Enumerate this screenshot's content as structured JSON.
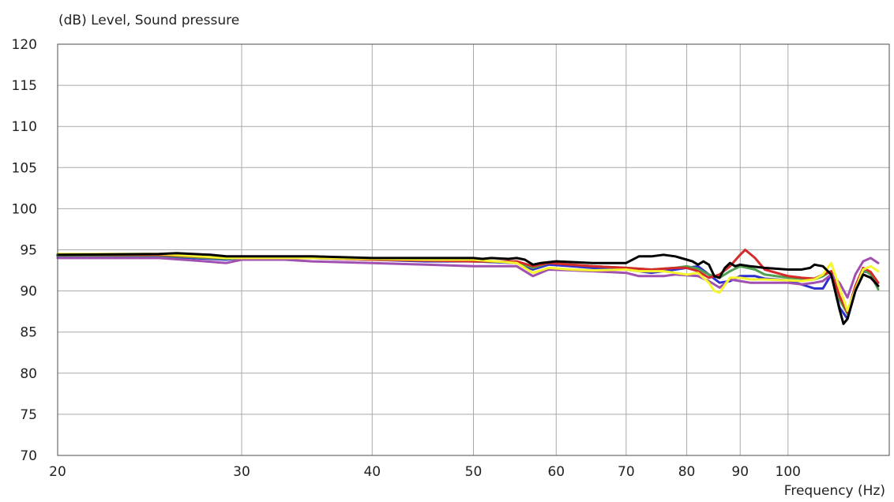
{
  "chart_data": {
    "type": "line",
    "title": "",
    "ylabel": "(dB)  Level, Sound pressure",
    "xlabel": "Frequency  (Hz)",
    "x_scale": "log",
    "xlim": [
      20,
      125
    ],
    "ylim": [
      70,
      120
    ],
    "grid": true,
    "legend": "none",
    "x_ticks": [
      20,
      30,
      40,
      50,
      60,
      70,
      80,
      90,
      100
    ],
    "y_ticks": [
      70,
      75,
      80,
      85,
      90,
      95,
      100,
      105,
      110,
      115,
      120
    ],
    "series": [
      {
        "color": "#2f2fd0",
        "points": [
          [
            20,
            94.2
          ],
          [
            25,
            94.2
          ],
          [
            29,
            93.8
          ],
          [
            30,
            94.0
          ],
          [
            35,
            94.0
          ],
          [
            40,
            93.8
          ],
          [
            45,
            93.6
          ],
          [
            50,
            93.6
          ],
          [
            55,
            93.4
          ],
          [
            57,
            92.6
          ],
          [
            59,
            93.2
          ],
          [
            62,
            93.0
          ],
          [
            65,
            92.8
          ],
          [
            70,
            92.6
          ],
          [
            74,
            92.2
          ],
          [
            78,
            92.6
          ],
          [
            80,
            92.8
          ],
          [
            82,
            93.0
          ],
          [
            84,
            92.0
          ],
          [
            86,
            91.0
          ],
          [
            88,
            91.2
          ],
          [
            90,
            91.8
          ],
          [
            93,
            91.8
          ],
          [
            95,
            91.5
          ],
          [
            100,
            91.3
          ],
          [
            103,
            90.8
          ],
          [
            106,
            90.3
          ],
          [
            108,
            90.3
          ],
          [
            110,
            92.0
          ],
          [
            112,
            88.0
          ],
          [
            114,
            86.6
          ],
          [
            116,
            90.0
          ],
          [
            118,
            92.4
          ],
          [
            120,
            92.2
          ],
          [
            122,
            91.0
          ]
        ]
      },
      {
        "color": "#4fa04f",
        "points": [
          [
            20,
            94.3
          ],
          [
            25,
            94.3
          ],
          [
            29,
            93.9
          ],
          [
            30,
            94.0
          ],
          [
            35,
            94.0
          ],
          [
            40,
            93.8
          ],
          [
            45,
            93.7
          ],
          [
            50,
            93.6
          ],
          [
            55,
            93.5
          ],
          [
            57,
            92.8
          ],
          [
            59,
            93.4
          ],
          [
            62,
            93.2
          ],
          [
            65,
            93.0
          ],
          [
            70,
            92.8
          ],
          [
            74,
            92.6
          ],
          [
            78,
            92.8
          ],
          [
            80,
            93.0
          ],
          [
            82,
            92.7
          ],
          [
            84,
            92.0
          ],
          [
            86,
            91.6
          ],
          [
            88,
            92.4
          ],
          [
            90,
            93.0
          ],
          [
            93,
            92.6
          ],
          [
            95,
            92.0
          ],
          [
            100,
            91.6
          ],
          [
            103,
            91.5
          ],
          [
            106,
            91.4
          ],
          [
            108,
            91.8
          ],
          [
            110,
            92.4
          ],
          [
            112,
            89.0
          ],
          [
            114,
            87.2
          ],
          [
            116,
            90.4
          ],
          [
            118,
            92.6
          ],
          [
            120,
            92.0
          ],
          [
            122,
            90.2
          ]
        ]
      },
      {
        "color": "#d42a2a",
        "points": [
          [
            20,
            94.4
          ],
          [
            25,
            94.4
          ],
          [
            29,
            94.0
          ],
          [
            30,
            94.0
          ],
          [
            35,
            94.0
          ],
          [
            40,
            93.8
          ],
          [
            45,
            93.7
          ],
          [
            50,
            93.6
          ],
          [
            55,
            93.6
          ],
          [
            57,
            93.0
          ],
          [
            59,
            93.4
          ],
          [
            62,
            93.2
          ],
          [
            65,
            93.0
          ],
          [
            70,
            92.8
          ],
          [
            74,
            92.6
          ],
          [
            78,
            92.8
          ],
          [
            80,
            92.8
          ],
          [
            82,
            92.4
          ],
          [
            84,
            91.6
          ],
          [
            86,
            92.0
          ],
          [
            88,
            93.0
          ],
          [
            90,
            94.4
          ],
          [
            91,
            95.0
          ],
          [
            93,
            94.0
          ],
          [
            95,
            92.6
          ],
          [
            100,
            91.8
          ],
          [
            103,
            91.6
          ],
          [
            106,
            91.5
          ],
          [
            108,
            92.0
          ],
          [
            110,
            92.4
          ],
          [
            112,
            89.4
          ],
          [
            114,
            87.4
          ],
          [
            116,
            90.6
          ],
          [
            118,
            92.8
          ],
          [
            120,
            92.3
          ],
          [
            122,
            91.0
          ]
        ]
      },
      {
        "color": "#a050b0",
        "points": [
          [
            20,
            94.0
          ],
          [
            25,
            94.0
          ],
          [
            27,
            93.7
          ],
          [
            29,
            93.4
          ],
          [
            30,
            93.8
          ],
          [
            33,
            93.8
          ],
          [
            35,
            93.6
          ],
          [
            40,
            93.4
          ],
          [
            45,
            93.2
          ],
          [
            50,
            93.0
          ],
          [
            55,
            93.0
          ],
          [
            57,
            91.8
          ],
          [
            59,
            92.6
          ],
          [
            62,
            92.5
          ],
          [
            65,
            92.4
          ],
          [
            70,
            92.2
          ],
          [
            72,
            91.8
          ],
          [
            76,
            91.8
          ],
          [
            78,
            92.0
          ],
          [
            82,
            91.8
          ],
          [
            84,
            91.2
          ],
          [
            86,
            90.4
          ],
          [
            88,
            91.4
          ],
          [
            90,
            91.2
          ],
          [
            92,
            91.0
          ],
          [
            95,
            91.0
          ],
          [
            100,
            91.0
          ],
          [
            103,
            90.8
          ],
          [
            106,
            91.0
          ],
          [
            108,
            91.2
          ],
          [
            110,
            92.0
          ],
          [
            112,
            91.0
          ],
          [
            114,
            89.2
          ],
          [
            116,
            92.0
          ],
          [
            118,
            93.6
          ],
          [
            120,
            94.0
          ],
          [
            122,
            93.4
          ]
        ]
      },
      {
        "color": "#f5f530",
        "points": [
          [
            20,
            94.5
          ],
          [
            25,
            94.5
          ],
          [
            29,
            94.0
          ],
          [
            30,
            94.0
          ],
          [
            35,
            94.0
          ],
          [
            40,
            93.9
          ],
          [
            45,
            93.8
          ],
          [
            50,
            93.8
          ],
          [
            55,
            93.4
          ],
          [
            57,
            92.2
          ],
          [
            59,
            92.8
          ],
          [
            62,
            92.6
          ],
          [
            65,
            92.5
          ],
          [
            70,
            92.6
          ],
          [
            72,
            92.4
          ],
          [
            76,
            92.4
          ],
          [
            78,
            92.2
          ],
          [
            80,
            92.0
          ],
          [
            82,
            92.2
          ],
          [
            84,
            91.0
          ],
          [
            85,
            90.0
          ],
          [
            86,
            89.8
          ],
          [
            88,
            91.6
          ],
          [
            90,
            91.6
          ],
          [
            92,
            91.4
          ],
          [
            95,
            91.4
          ],
          [
            100,
            91.3
          ],
          [
            103,
            91.2
          ],
          [
            106,
            91.4
          ],
          [
            108,
            92.0
          ],
          [
            110,
            93.4
          ],
          [
            112,
            90.4
          ],
          [
            114,
            87.6
          ],
          [
            116,
            90.2
          ],
          [
            118,
            92.6
          ],
          [
            120,
            93.0
          ],
          [
            122,
            92.4
          ]
        ]
      },
      {
        "color": "#000000",
        "points": [
          [
            20,
            94.4
          ],
          [
            25,
            94.5
          ],
          [
            26,
            94.6
          ],
          [
            28,
            94.4
          ],
          [
            29,
            94.2
          ],
          [
            30,
            94.2
          ],
          [
            35,
            94.2
          ],
          [
            40,
            94.0
          ],
          [
            45,
            94.0
          ],
          [
            50,
            94.0
          ],
          [
            51,
            93.9
          ],
          [
            52,
            94.0
          ],
          [
            54,
            93.9
          ],
          [
            55,
            94.0
          ],
          [
            56,
            93.8
          ],
          [
            57,
            93.2
          ],
          [
            58,
            93.4
          ],
          [
            60,
            93.6
          ],
          [
            65,
            93.4
          ],
          [
            70,
            93.4
          ],
          [
            72,
            94.2
          ],
          [
            74,
            94.2
          ],
          [
            76,
            94.4
          ],
          [
            78,
            94.2
          ],
          [
            80,
            93.8
          ],
          [
            81,
            93.6
          ],
          [
            82,
            93.2
          ],
          [
            83,
            93.6
          ],
          [
            84,
            93.2
          ],
          [
            85,
            91.8
          ],
          [
            86,
            91.6
          ],
          [
            87,
            92.8
          ],
          [
            88,
            93.4
          ],
          [
            89,
            93.0
          ],
          [
            90,
            93.2
          ],
          [
            92,
            93.0
          ],
          [
            95,
            92.8
          ],
          [
            100,
            92.6
          ],
          [
            103,
            92.6
          ],
          [
            105,
            92.8
          ],
          [
            106,
            93.2
          ],
          [
            108,
            93.0
          ],
          [
            110,
            92.0
          ],
          [
            112,
            87.8
          ],
          [
            113,
            86.0
          ],
          [
            114,
            86.6
          ],
          [
            116,
            90.0
          ],
          [
            118,
            92.0
          ],
          [
            120,
            91.6
          ],
          [
            122,
            90.6
          ]
        ]
      }
    ]
  }
}
